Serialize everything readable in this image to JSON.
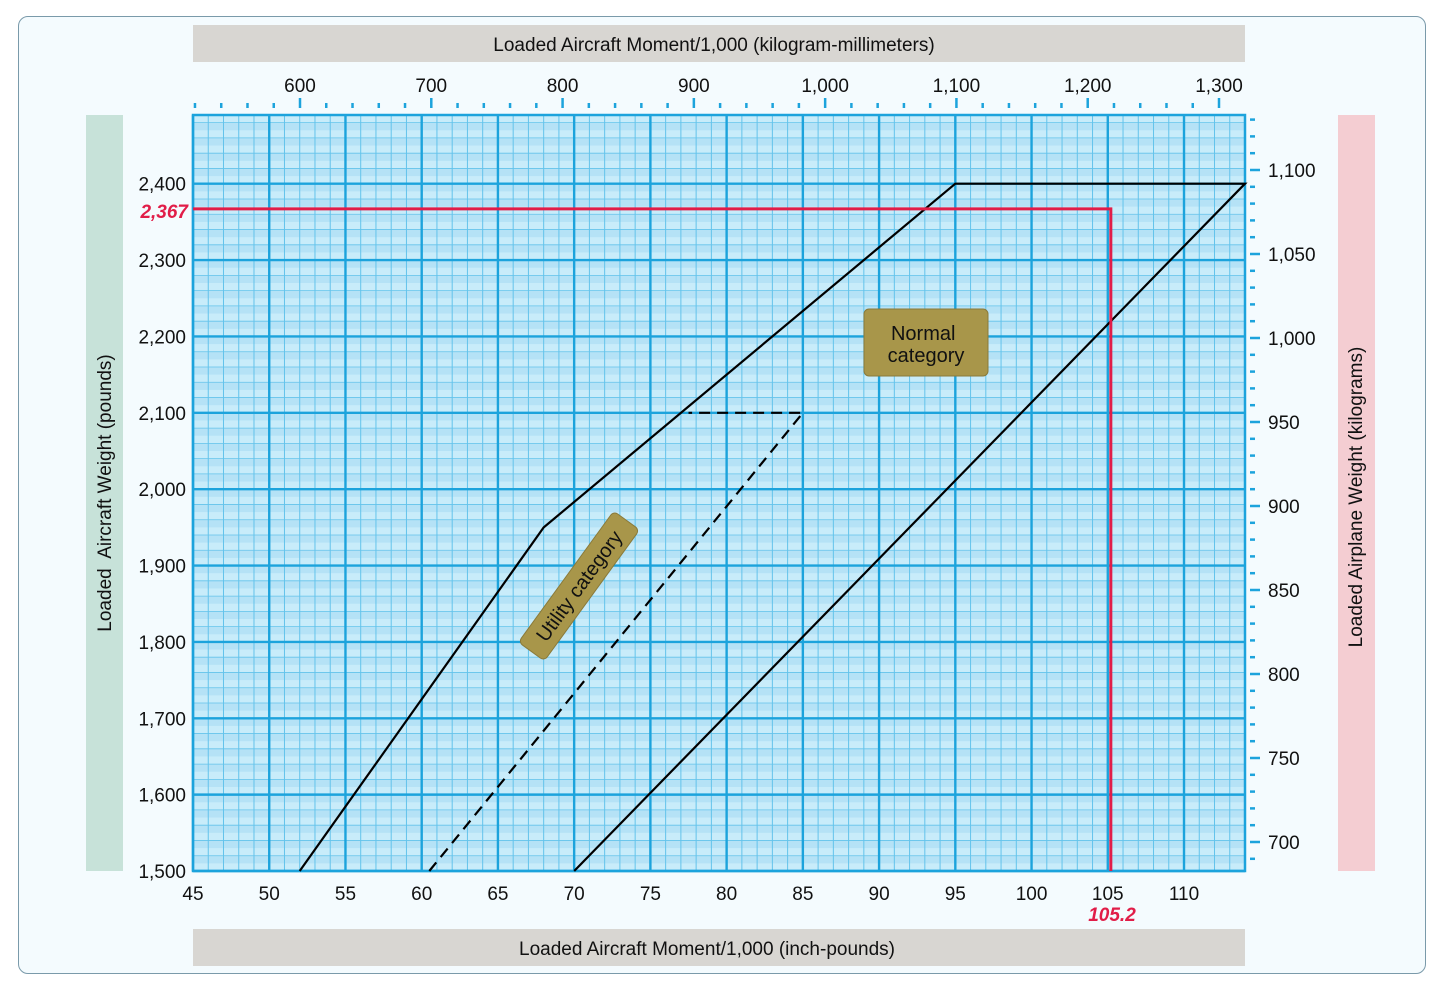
{
  "chart_data": {
    "type": "line",
    "title": "",
    "top_axis": {
      "label": "Loaded Aircraft Moment/1,000 (kilogram-millimeters)",
      "ticks": [
        "600",
        "700",
        "800",
        "900",
        "1,000",
        "1,100",
        "1,200",
        "1,300"
      ],
      "tick_values": [
        600,
        700,
        800,
        900,
        1000,
        1100,
        1200,
        1300
      ]
    },
    "xlabel": "Loaded Aircraft Moment/1,000 (inch-pounds)",
    "xlim": [
      45,
      114
    ],
    "x_ticks": [
      "45",
      "50",
      "55",
      "60",
      "65",
      "70",
      "75",
      "80",
      "85",
      "90",
      "95",
      "100",
      "105",
      "110"
    ],
    "x_tick_values": [
      45,
      50,
      55,
      60,
      65,
      70,
      75,
      80,
      85,
      90,
      95,
      100,
      105,
      110
    ],
    "ylabel": "Loaded  Aircraft Weight (pounds)",
    "ylim": [
      1500,
      2490
    ],
    "y_ticks": [
      "1,500",
      "1,600",
      "1,700",
      "1,800",
      "1,900",
      "2,000",
      "2,100",
      "2,200",
      "2,300",
      "2,400"
    ],
    "y_tick_values": [
      1500,
      1600,
      1700,
      1800,
      1900,
      2000,
      2100,
      2200,
      2300,
      2400
    ],
    "right_axis": {
      "label": "Loaded Airplane Weight (kilograms)",
      "ticks": [
        "700",
        "750",
        "800",
        "850",
        "900",
        "950",
        "1,000",
        "1,050",
        "1,100"
      ],
      "tick_values": [
        700,
        750,
        800,
        850,
        900,
        950,
        1000,
        1050,
        1100
      ]
    },
    "series": [
      {
        "name": "Normal category",
        "style": "solid",
        "x": [
          52,
          68,
          95,
          114,
          70
        ],
        "y": [
          1500,
          1950,
          2400,
          2400,
          1500
        ]
      },
      {
        "name": "Utility category",
        "style": "dashed",
        "x": [
          60.5,
          85,
          77.5
        ],
        "y": [
          1500,
          2100,
          2100
        ]
      }
    ],
    "annotations": {
      "normal_label": "Normal\ncategory",
      "utility_label": "Utility category",
      "reading_weight": "2,367",
      "reading_moment": "105.2",
      "reading_weight_value": 2367,
      "reading_moment_value": 105.2
    },
    "colors": {
      "plot_bg": "#c8ecfa",
      "grid_major": "#1ca3dc",
      "grid_minor": "#63c3eb",
      "envelope": "#000000",
      "reading_line": "#e11d48",
      "label_bg": "#a8964a",
      "left_band": "#c7e2d9",
      "right_band": "#f4cdd2",
      "axis_band": "#d8d6d2"
    },
    "grid": true
  }
}
